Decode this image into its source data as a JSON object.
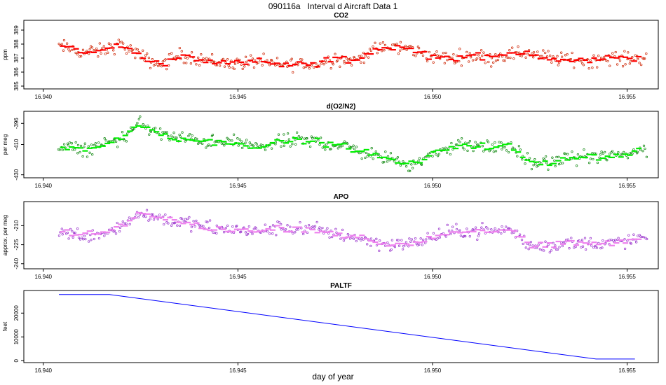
{
  "page_title": "090116a   Interval d Aircraft Data 1",
  "xlabel": "day of year",
  "colors": {
    "co2": "#ff0000",
    "co2_points": "#cc2200",
    "o2n2": "#00ee00",
    "o2n2_points": "#118811",
    "apo": "#ee82ee",
    "apo_points": "#9933cc",
    "paltf": "#0000ff"
  },
  "chart_data": [
    {
      "type": "scatter",
      "title": "CO2",
      "ylabel": "ppm",
      "xlim": [
        16.9395,
        16.9558
      ],
      "ylim": [
        384.8,
        389.7
      ],
      "xticks": [
        "16.940",
        "16.945",
        "16.950",
        "16.955"
      ],
      "yticks": [
        385,
        386,
        387,
        388,
        389
      ],
      "x": [
        16.9405,
        16.941,
        16.9415,
        16.942,
        16.9425,
        16.943,
        16.9435,
        16.944,
        16.9445,
        16.945,
        16.9455,
        16.946,
        16.9465,
        16.947,
        16.9475,
        16.948,
        16.9485,
        16.949,
        16.9495,
        16.95,
        16.9505,
        16.951,
        16.9515,
        16.952,
        16.9525,
        16.953,
        16.9535,
        16.954,
        16.9545,
        16.955,
        16.9555
      ],
      "y": [
        387.8,
        387.4,
        387.5,
        388.0,
        387.1,
        386.5,
        387.2,
        387.0,
        386.7,
        386.6,
        386.8,
        386.5,
        386.6,
        386.5,
        387.0,
        386.8,
        387.6,
        387.8,
        387.6,
        387.1,
        387.0,
        387.2,
        387.0,
        387.3,
        387.4,
        387.0,
        386.9,
        386.8,
        387.0,
        386.9,
        387.1
      ]
    },
    {
      "type": "scatter",
      "title": "d(O2/N2)",
      "ylabel": "per meg",
      "xlim": [
        16.9395,
        16.9558
      ],
      "ylim": [
        -432,
        -388
      ],
      "xticks": [
        "16.940",
        "16.945",
        "16.950",
        "16.955"
      ],
      "yticks": [
        -430,
        -410,
        -396
      ],
      "x": [
        16.9405,
        16.941,
        16.9415,
        16.942,
        16.9425,
        16.943,
        16.9435,
        16.944,
        16.9445,
        16.945,
        16.9455,
        16.946,
        16.9465,
        16.947,
        16.9475,
        16.948,
        16.9485,
        16.949,
        16.9495,
        16.95,
        16.9505,
        16.951,
        16.9515,
        16.952,
        16.9525,
        16.953,
        16.9535,
        16.954,
        16.9545,
        16.955,
        16.9555
      ],
      "y": [
        -412,
        -413,
        -411,
        -406,
        -396,
        -403,
        -406,
        -407,
        -409,
        -408,
        -412,
        -409,
        -407,
        -408,
        -410,
        -413,
        -417,
        -421,
        -423,
        -417,
        -411,
        -410,
        -412,
        -411,
        -422,
        -423,
        -418,
        -418,
        -418,
        -416,
        -413
      ]
    },
    {
      "type": "scatter",
      "title": "APO",
      "ylabel": "approx. per meg",
      "xlim": [
        16.9395,
        16.9558
      ],
      "ylim": [
        -244,
        -191
      ],
      "xticks": [
        "16.940",
        "16.945",
        "16.950",
        "16.955"
      ],
      "yticks": [
        -240,
        -225,
        -210
      ],
      "x": [
        16.9405,
        16.941,
        16.9415,
        16.942,
        16.9425,
        16.943,
        16.9435,
        16.944,
        16.9445,
        16.945,
        16.9455,
        16.946,
        16.9465,
        16.947,
        16.9475,
        16.948,
        16.9485,
        16.949,
        16.9495,
        16.95,
        16.9505,
        16.951,
        16.9515,
        16.952,
        16.9525,
        16.953,
        16.9535,
        16.954,
        16.9545,
        16.955,
        16.9555
      ],
      "y": [
        -215,
        -218,
        -216,
        -210,
        -200,
        -204,
        -207,
        -210,
        -213,
        -213,
        -215,
        -212,
        -212,
        -213,
        -216,
        -219,
        -223,
        -225,
        -224,
        -219,
        -215,
        -214,
        -214,
        -213,
        -226,
        -226,
        -224,
        -224,
        -224,
        -222,
        -220
      ]
    },
    {
      "type": "line",
      "title": "PALTF",
      "ylabel": "feet",
      "xlim": [
        16.9395,
        16.9558
      ],
      "ylim": [
        -800,
        29500
      ],
      "xticks": [
        "16.940",
        "16.945",
        "16.950",
        "16.955"
      ],
      "yticks": [
        0,
        10000,
        20000
      ],
      "x": [
        16.9404,
        16.9417,
        16.9542,
        16.9552
      ],
      "y": [
        27800,
        27800,
        700,
        700
      ]
    }
  ]
}
